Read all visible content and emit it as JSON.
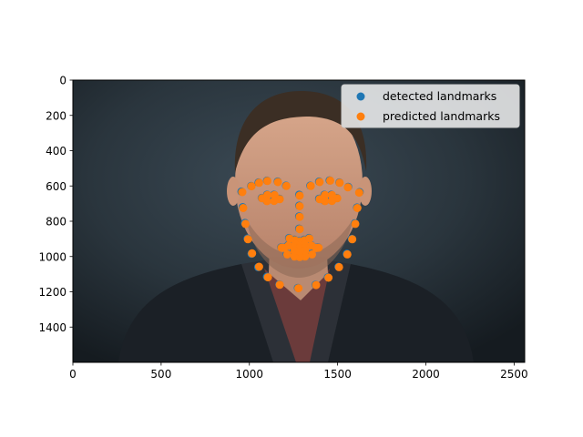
{
  "chart_data": {
    "type": "scatter",
    "title": "",
    "xlabel": "",
    "ylabel": "",
    "xlim": [
      0,
      2560
    ],
    "ylim": [
      1600,
      0
    ],
    "y_inverted": true,
    "grid": false,
    "legend_position": "upper-right",
    "x_ticks": [
      0,
      500,
      1000,
      1500,
      2000,
      2500
    ],
    "y_ticks": [
      0,
      200,
      400,
      600,
      800,
      1000,
      1200,
      1400
    ],
    "background_image": "portrait-photo-of-man-in-dark-suit",
    "series": [
      {
        "name": "detected landmarks",
        "color": "#1f77b4",
        "points": [
          [
            955,
            632
          ],
          [
            962,
            720
          ],
          [
            975,
            810
          ],
          [
            990,
            898
          ],
          [
            1012,
            985
          ],
          [
            1050,
            1060
          ],
          [
            1100,
            1115
          ],
          [
            1170,
            1158
          ],
          [
            1275,
            1178
          ],
          [
            1375,
            1160
          ],
          [
            1445,
            1118
          ],
          [
            1505,
            1058
          ],
          [
            1552,
            985
          ],
          [
            1580,
            900
          ],
          [
            1598,
            812
          ],
          [
            1610,
            722
          ],
          [
            1625,
            635
          ],
          [
            1010,
            600
          ],
          [
            1052,
            580
          ],
          [
            1100,
            570
          ],
          [
            1160,
            575
          ],
          [
            1208,
            598
          ],
          [
            1345,
            598
          ],
          [
            1395,
            575
          ],
          [
            1455,
            568
          ],
          [
            1510,
            580
          ],
          [
            1560,
            605
          ],
          [
            1282,
            650
          ],
          [
            1282,
            712
          ],
          [
            1282,
            772
          ],
          [
            1282,
            842
          ],
          [
            1225,
            895
          ],
          [
            1255,
            905
          ],
          [
            1282,
            912
          ],
          [
            1310,
            905
          ],
          [
            1338,
            895
          ],
          [
            1070,
            668
          ],
          [
            1100,
            650
          ],
          [
            1140,
            650
          ],
          [
            1170,
            672
          ],
          [
            1138,
            682
          ],
          [
            1098,
            684
          ],
          [
            1395,
            672
          ],
          [
            1425,
            650
          ],
          [
            1465,
            650
          ],
          [
            1495,
            668
          ],
          [
            1465,
            682
          ],
          [
            1425,
            684
          ],
          [
            1180,
            948
          ],
          [
            1220,
            935
          ],
          [
            1260,
            928
          ],
          [
            1285,
            932
          ],
          [
            1310,
            928
          ],
          [
            1350,
            935
          ],
          [
            1390,
            948
          ],
          [
            1352,
            985
          ],
          [
            1312,
            998
          ],
          [
            1282,
            1000
          ],
          [
            1252,
            998
          ],
          [
            1212,
            985
          ],
          [
            1195,
            950
          ],
          [
            1252,
            948
          ],
          [
            1282,
            950
          ],
          [
            1312,
            948
          ],
          [
            1375,
            950
          ],
          [
            1312,
            965
          ],
          [
            1282,
            968
          ],
          [
            1252,
            965
          ]
        ]
      },
      {
        "name": "predicted landmarks",
        "color": "#ff7f0e",
        "points": [
          [
            960,
            635
          ],
          [
            965,
            725
          ],
          [
            978,
            815
          ],
          [
            992,
            902
          ],
          [
            1015,
            982
          ],
          [
            1055,
            1058
          ],
          [
            1105,
            1118
          ],
          [
            1172,
            1160
          ],
          [
            1278,
            1180
          ],
          [
            1378,
            1162
          ],
          [
            1448,
            1120
          ],
          [
            1508,
            1060
          ],
          [
            1555,
            988
          ],
          [
            1583,
            902
          ],
          [
            1600,
            815
          ],
          [
            1612,
            725
          ],
          [
            1622,
            638
          ],
          [
            1012,
            602
          ],
          [
            1055,
            582
          ],
          [
            1102,
            572
          ],
          [
            1162,
            578
          ],
          [
            1210,
            600
          ],
          [
            1348,
            600
          ],
          [
            1398,
            578
          ],
          [
            1458,
            570
          ],
          [
            1512,
            582
          ],
          [
            1558,
            608
          ],
          [
            1285,
            655
          ],
          [
            1285,
            715
          ],
          [
            1285,
            775
          ],
          [
            1285,
            845
          ],
          [
            1228,
            898
          ],
          [
            1258,
            908
          ],
          [
            1285,
            915
          ],
          [
            1312,
            908
          ],
          [
            1340,
            898
          ],
          [
            1072,
            670
          ],
          [
            1102,
            652
          ],
          [
            1142,
            652
          ],
          [
            1172,
            675
          ],
          [
            1140,
            685
          ],
          [
            1100,
            686
          ],
          [
            1398,
            675
          ],
          [
            1428,
            652
          ],
          [
            1468,
            652
          ],
          [
            1498,
            670
          ],
          [
            1468,
            685
          ],
          [
            1428,
            686
          ],
          [
            1182,
            950
          ],
          [
            1222,
            938
          ],
          [
            1262,
            930
          ],
          [
            1288,
            935
          ],
          [
            1312,
            930
          ],
          [
            1352,
            938
          ],
          [
            1392,
            950
          ],
          [
            1355,
            988
          ],
          [
            1315,
            1000
          ],
          [
            1285,
            1003
          ],
          [
            1255,
            1000
          ],
          [
            1215,
            988
          ],
          [
            1198,
            952
          ],
          [
            1255,
            950
          ],
          [
            1285,
            952
          ],
          [
            1315,
            950
          ],
          [
            1378,
            952
          ],
          [
            1315,
            968
          ],
          [
            1285,
            970
          ],
          [
            1255,
            968
          ]
        ]
      }
    ]
  }
}
